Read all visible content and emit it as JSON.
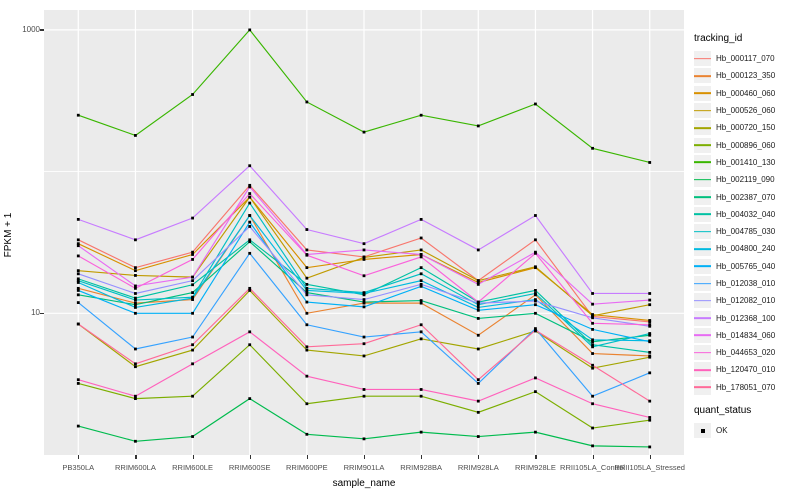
{
  "figure": {
    "background": "#FFFFFF",
    "panel_background": "#EBEBEB",
    "grid_color": "#FFFFFF",
    "axis_text_color": "#4D4D4D",
    "tick_color": "#333333"
  },
  "chart_data": {
    "type": "line",
    "title": "",
    "xlabel": "sample_name",
    "ylabel": "FPKM + 1",
    "y_scale": "log10",
    "y_axis_tick_labels": [
      "1000",
      "10"
    ],
    "y_axis_tick_values": [
      1000,
      10
    ],
    "y_gridlines_major": [
      1000,
      10
    ],
    "y_gridlines_minor": [
      100
    ],
    "ylim_log": [
      1,
      1400
    ],
    "grid": true,
    "legend_position": "right",
    "point_marker": {
      "shape": "square",
      "color": "#000000"
    },
    "categories": [
      "PB350LA",
      "RRIM600LA",
      "RRIM600LE",
      "RRIM600SE",
      "RRIM600PE",
      "RRIM901LA",
      "RRIM928BA",
      "RRIM928LA",
      "RRIM928LE",
      "RRII105LA_Control",
      "RRII105LA_Stressed"
    ],
    "series": [
      {
        "name": "Hb_000117_070",
        "color": "#F8766D",
        "values": [
          33,
          21,
          27,
          80,
          28,
          25,
          34,
          17,
          33,
          9.5,
          8.7
        ]
      },
      {
        "name": "Hb_000123_350",
        "color": "#EA8331",
        "values": [
          15,
          11.8,
          12.5,
          49,
          10,
          11.8,
          11.8,
          7.0,
          13.5,
          5.2,
          5.0
        ]
      },
      {
        "name": "Hb_000460_060",
        "color": "#D89000",
        "values": [
          31,
          20,
          26,
          66,
          21,
          24,
          26,
          16.5,
          21,
          9.8,
          8.9
        ]
      },
      {
        "name": "Hb_000526_060",
        "color": "#C09B00",
        "values": [
          20,
          18.5,
          18,
          66,
          17.7,
          24.8,
          28,
          17,
          21.3,
          9.6,
          11.5
        ]
      },
      {
        "name": "Hb_000720_150",
        "color": "#A3A500",
        "values": [
          8.4,
          4.2,
          5.5,
          14.5,
          5.5,
          5.0,
          6.6,
          5.6,
          7.5,
          4.1,
          4.9
        ]
      },
      {
        "name": "Hb_000896_060",
        "color": "#7CAE00",
        "values": [
          3.2,
          2.5,
          2.6,
          6.0,
          2.3,
          2.6,
          2.6,
          2.0,
          2.8,
          1.55,
          1.76
        ]
      },
      {
        "name": "Hb_001410_130",
        "color": "#39B600",
        "values": [
          250,
          180,
          350,
          1000,
          310,
          190,
          250,
          210,
          300,
          146,
          116
        ]
      },
      {
        "name": "Hb_002119_090",
        "color": "#00BB4E",
        "values": [
          1.6,
          1.25,
          1.35,
          2.5,
          1.4,
          1.3,
          1.45,
          1.35,
          1.45,
          1.16,
          1.14
        ]
      },
      {
        "name": "Hb_002387_070",
        "color": "#00BF7D",
        "values": [
          13.5,
          11.5,
          14,
          32,
          14,
          12,
          12.3,
          9.2,
          10,
          6.3,
          7.0
        ]
      },
      {
        "name": "Hb_004032_040",
        "color": "#00C1A3",
        "values": [
          17.5,
          12.8,
          15.9,
          33,
          16,
          13.5,
          21,
          12,
          14.5,
          6.0,
          5.3
        ]
      },
      {
        "name": "Hb_004785_030",
        "color": "#00BFC4",
        "values": [
          17,
          12.4,
          13,
          60,
          15,
          14,
          19,
          11.5,
          13.8,
          5.8,
          7.2
        ]
      },
      {
        "name": "Hb_004800_240",
        "color": "#00BAE0",
        "values": [
          16.5,
          11,
          12.8,
          49,
          14.5,
          13.8,
          17,
          11,
          12.5,
          6.5,
          6.4
        ]
      },
      {
        "name": "Hb_005765_040",
        "color": "#00B0F6",
        "values": [
          14.5,
          10,
          10,
          44,
          12,
          11.1,
          15.5,
          10.5,
          11.5,
          7.7,
          6.3
        ]
      },
      {
        "name": "Hb_012038_010",
        "color": "#35A2FF",
        "values": [
          11.9,
          5.6,
          6.8,
          26.5,
          8.3,
          6.8,
          7.4,
          3.2,
          7.8,
          2.6,
          3.8
        ]
      },
      {
        "name": "Hb_012082_010",
        "color": "#9590FF",
        "values": [
          19,
          13.8,
          17,
          41,
          13.5,
          12.5,
          16,
          11.8,
          12.2,
          9.3,
          8.1
        ]
      },
      {
        "name": "Hb_012368_100",
        "color": "#C77CFF",
        "values": [
          46,
          33,
          47,
          110,
          39,
          31,
          46,
          28,
          49,
          13.8,
          13.8
        ]
      },
      {
        "name": "Hb_014834_060",
        "color": "#E76BF3",
        "values": [
          30,
          15.6,
          18,
          78,
          26,
          28,
          26,
          16,
          27,
          11.6,
          12.4
        ]
      },
      {
        "name": "Hb_044653_020",
        "color": "#FA62DB",
        "values": [
          25.4,
          15,
          24,
          70,
          25.7,
          18.4,
          25,
          12,
          26.5,
          8.5,
          8.3
        ]
      },
      {
        "name": "Hb_120470_010",
        "color": "#FF62BC",
        "values": [
          3.4,
          2.6,
          4.4,
          7.4,
          3.6,
          2.9,
          2.9,
          2.4,
          3.5,
          2.3,
          1.84
        ]
      },
      {
        "name": "Hb_178051_070",
        "color": "#FF6A98",
        "values": [
          8.4,
          4.4,
          6.0,
          15,
          5.8,
          6.1,
          8.3,
          3.4,
          7.6,
          4.3,
          2.4
        ]
      }
    ]
  },
  "legend": {
    "tracking": {
      "title": "tracking_id"
    },
    "quant": {
      "title": "quant_status",
      "items": [
        {
          "label": "OK",
          "marker": "black-square"
        }
      ]
    }
  }
}
